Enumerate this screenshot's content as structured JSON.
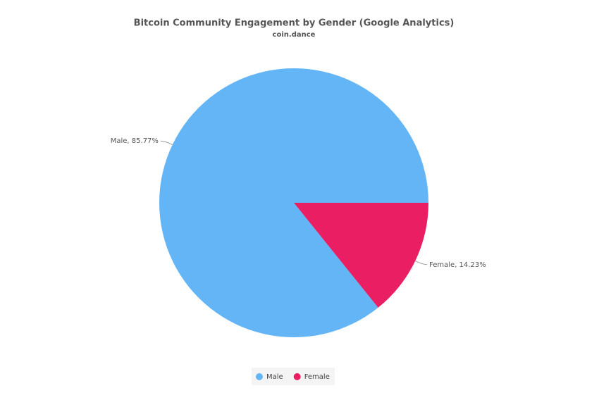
{
  "chart_data": {
    "type": "pie",
    "title": "Bitcoin Community Engagement by Gender (Google Analytics)",
    "subtitle": "coin.dance",
    "categories": [
      "Male",
      "Female"
    ],
    "values": [
      85.77,
      14.23
    ],
    "value_labels": [
      "Male, 85.77%",
      "Female, 14.23%"
    ],
    "colors": [
      "#64b5f6",
      "#e91e63"
    ]
  }
}
